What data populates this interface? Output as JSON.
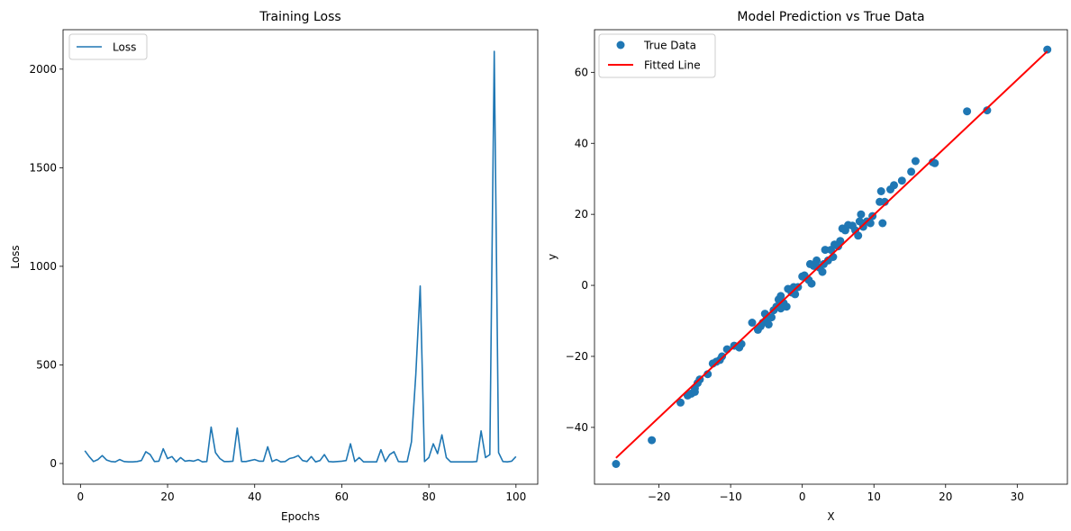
{
  "chart_data": [
    {
      "type": "line",
      "title": "Training Loss",
      "xlabel": "Epochs",
      "ylabel": "Loss",
      "xlim": [
        -4,
        105
      ],
      "ylim": [
        -105,
        2200
      ],
      "xticks": [
        0,
        20,
        40,
        60,
        80,
        100
      ],
      "yticks": [
        0,
        500,
        1000,
        1500,
        2000
      ],
      "grid": false,
      "legend": {
        "placement": "top-left",
        "entries": [
          "Loss"
        ]
      },
      "series": [
        {
          "name": "Loss",
          "color": "#1f77b4",
          "x": [
            1,
            2,
            3,
            4,
            5,
            6,
            7,
            8,
            9,
            10,
            11,
            12,
            13,
            14,
            15,
            16,
            17,
            18,
            19,
            20,
            21,
            22,
            23,
            24,
            25,
            26,
            27,
            28,
            29,
            30,
            31,
            32,
            33,
            34,
            35,
            36,
            37,
            38,
            39,
            40,
            41,
            42,
            43,
            44,
            45,
            46,
            47,
            48,
            49,
            50,
            51,
            52,
            53,
            54,
            55,
            56,
            57,
            58,
            59,
            60,
            61,
            62,
            63,
            64,
            65,
            66,
            67,
            68,
            69,
            70,
            71,
            72,
            73,
            74,
            75,
            76,
            77,
            78,
            79,
            80,
            81,
            82,
            83,
            84,
            85,
            86,
            87,
            88,
            89,
            90,
            91,
            92,
            93,
            94,
            95,
            96,
            97,
            98,
            99,
            100
          ],
          "values": [
            65,
            35,
            10,
            20,
            40,
            18,
            10,
            8,
            20,
            10,
            8,
            8,
            10,
            15,
            60,
            45,
            10,
            12,
            75,
            25,
            35,
            8,
            30,
            12,
            15,
            12,
            20,
            8,
            10,
            185,
            55,
            25,
            10,
            10,
            12,
            180,
            10,
            10,
            15,
            20,
            12,
            12,
            85,
            10,
            20,
            8,
            10,
            25,
            30,
            40,
            15,
            10,
            35,
            8,
            15,
            45,
            10,
            8,
            10,
            12,
            15,
            100,
            10,
            30,
            8,
            8,
            8,
            8,
            70,
            10,
            45,
            60,
            10,
            8,
            10,
            110,
            450,
            900,
            10,
            30,
            100,
            50,
            145,
            30,
            8,
            8,
            8,
            8,
            8,
            8,
            10,
            165,
            30,
            45,
            2090,
            55,
            10,
            8,
            12,
            35
          ]
        }
      ]
    },
    {
      "type": "scatter",
      "title": "Model Prediction vs True Data",
      "xlabel": "X",
      "ylabel": "y",
      "xlim": [
        -29,
        37
      ],
      "ylim": [
        -56,
        72
      ],
      "xticks": [
        -20,
        -10,
        0,
        10,
        20,
        30
      ],
      "yticks": [
        -40,
        -20,
        0,
        20,
        40,
        60
      ],
      "grid": false,
      "legend": {
        "placement": "top-left",
        "entries": [
          "True Data",
          "Fitted Line"
        ]
      },
      "series": [
        {
          "name": "True Data",
          "kind": "scatter",
          "color": "#1f77b4",
          "points": [
            [
              -26,
              -50.3
            ],
            [
              -21,
              -43.6
            ],
            [
              -17,
              -33
            ],
            [
              -16,
              -31
            ],
            [
              -15.5,
              -30.5
            ],
            [
              -15,
              -30
            ],
            [
              -15,
              -29
            ],
            [
              -14.6,
              -27.5
            ],
            [
              -14.3,
              -26.5
            ],
            [
              -13.2,
              -25
            ],
            [
              -12.5,
              -22
            ],
            [
              -12,
              -21.5
            ],
            [
              -11.5,
              -21
            ],
            [
              -11.2,
              -20
            ],
            [
              -10.5,
              -18
            ],
            [
              -9.5,
              -17
            ],
            [
              -8.8,
              -17.5
            ],
            [
              -8.5,
              -16.5
            ],
            [
              -7,
              -10.5
            ],
            [
              -6.2,
              -12.5
            ],
            [
              -5.8,
              -11.5
            ],
            [
              -5.5,
              -10.5
            ],
            [
              -5,
              -9.5
            ],
            [
              -5.2,
              -8
            ],
            [
              -4.7,
              -11
            ],
            [
              -4.3,
              -9
            ],
            [
              -4,
              -7
            ],
            [
              -3.6,
              -6
            ],
            [
              -3.3,
              -4
            ],
            [
              -3,
              -6.5
            ],
            [
              -3,
              -3
            ],
            [
              -2.6,
              -5
            ],
            [
              -2.2,
              -6
            ],
            [
              -2,
              -1
            ],
            [
              -1.5,
              -2
            ],
            [
              -1.2,
              -0.5
            ],
            [
              -1,
              -2.5
            ],
            [
              -0.6,
              -0.5
            ],
            [
              0,
              2.5
            ],
            [
              0.3,
              2.8
            ],
            [
              0.9,
              1.5
            ],
            [
              1.1,
              6
            ],
            [
              1.3,
              0.5
            ],
            [
              1.6,
              5.5
            ],
            [
              2,
              7
            ],
            [
              2.4,
              5
            ],
            [
              2.8,
              3.8
            ],
            [
              3,
              6
            ],
            [
              3.2,
              10
            ],
            [
              3.6,
              7
            ],
            [
              4,
              10
            ],
            [
              4.3,
              8
            ],
            [
              4.5,
              11.5
            ],
            [
              5,
              11
            ],
            [
              5.3,
              12.5
            ],
            [
              5.6,
              16
            ],
            [
              6,
              15.5
            ],
            [
              6.4,
              17
            ],
            [
              7,
              16.8
            ],
            [
              7.4,
              15.5
            ],
            [
              7.8,
              14
            ],
            [
              8,
              18
            ],
            [
              8.2,
              20
            ],
            [
              8.5,
              16.5
            ],
            [
              9,
              18
            ],
            [
              9.5,
              17.5
            ],
            [
              9.8,
              19.5
            ],
            [
              10.8,
              23.5
            ],
            [
              11,
              26.5
            ],
            [
              11.2,
              17.5
            ],
            [
              11.5,
              23.5
            ],
            [
              12.3,
              27
            ],
            [
              12.8,
              28.2
            ],
            [
              13.9,
              29.5
            ],
            [
              15.2,
              32
            ],
            [
              15.8,
              35
            ],
            [
              18.2,
              34.7
            ],
            [
              18.5,
              34.4
            ],
            [
              23,
              49
            ],
            [
              25.8,
              49.3
            ],
            [
              34.2,
              66.4
            ]
          ]
        },
        {
          "name": "Fitted Line",
          "kind": "line",
          "color": "#ff0000",
          "x": [
            -26,
            34.2
          ],
          "values": [
            -48.6,
            65.9
          ]
        }
      ]
    }
  ]
}
